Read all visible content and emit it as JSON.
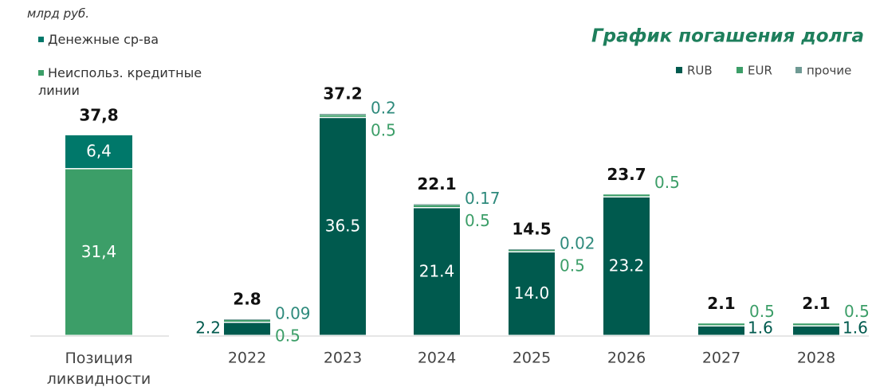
{
  "chart_data": [
    {
      "type": "bar",
      "stacked": true,
      "annotation": "млрд руб.",
      "categories": [
        "Позиция ликвидности"
      ],
      "series": [
        {
          "name": "Денежные ср-ва",
          "color": "#00786a",
          "values": [
            6.4
          ],
          "value_labels": [
            "6,4"
          ]
        },
        {
          "name": "Неиспольз. кредитные линии",
          "color": "#3c9e68",
          "values": [
            31.4
          ],
          "value_labels": [
            "31,4"
          ]
        }
      ],
      "totals": [
        37.8
      ],
      "total_labels": [
        "37,8"
      ]
    },
    {
      "type": "bar",
      "stacked": true,
      "title": "График погашения долга",
      "categories": [
        "2022",
        "2023",
        "2024",
        "2025",
        "2026",
        "2027",
        "2028"
      ],
      "series": [
        {
          "name": "RUB",
          "color": "#005a4e",
          "values": [
            2.2,
            36.5,
            21.4,
            14.0,
            23.2,
            1.6,
            1.6
          ],
          "value_labels": [
            "2.2",
            "36.5",
            "21.4",
            "14.0",
            "23.2",
            "1.6",
            "1.6"
          ]
        },
        {
          "name": "EUR",
          "color": "#3c9e68",
          "values": [
            0.5,
            0.5,
            0.5,
            0.5,
            0.5,
            0.5,
            0.5
          ]
        },
        {
          "name": "прочие",
          "color": "#6f9a94",
          "values": [
            0.09,
            0.2,
            0.17,
            0.02,
            null,
            null,
            null
          ]
        }
      ],
      "totals": [
        2.8,
        37.2,
        22.1,
        14.5,
        23.7,
        2.1,
        2.1
      ]
    }
  ]
}
